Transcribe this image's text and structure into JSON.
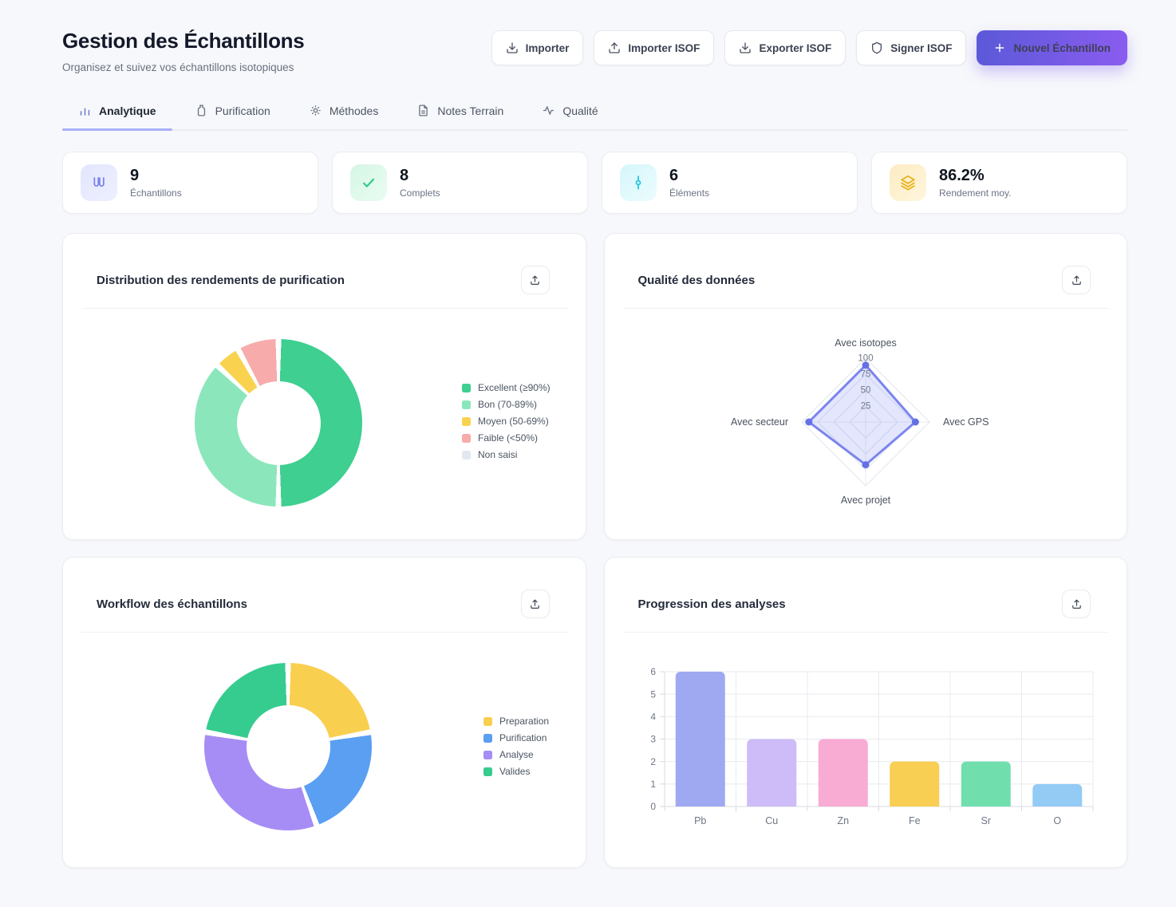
{
  "header": {
    "title": "Gestion des Échantillons",
    "subtitle": "Organisez et suivez vos échantillons isotopiques",
    "actions": [
      {
        "label": "Importer",
        "icon": "download-icon"
      },
      {
        "label": "Importer ISOF",
        "icon": "upload-icon"
      },
      {
        "label": "Exporter ISOF",
        "icon": "download-icon"
      },
      {
        "label": "Signer ISOF",
        "icon": "shield-icon"
      },
      {
        "label": "Nouvel Échantillon",
        "icon": "plus-icon",
        "primary": true,
        "accent": "#7a5cf0"
      }
    ]
  },
  "tabs": [
    {
      "label": "Analytique",
      "icon": "bar-chart-icon",
      "active": true
    },
    {
      "label": "Purification",
      "icon": "flask-icon",
      "active": false
    },
    {
      "label": "Méthodes",
      "icon": "sun-icon",
      "active": false
    },
    {
      "label": "Notes Terrain",
      "icon": "file-text-icon",
      "active": false
    },
    {
      "label": "Qualité",
      "icon": "activity-icon",
      "active": false
    }
  ],
  "stats": [
    {
      "value": "9",
      "label": "Échantillons",
      "icon": "test-tubes-icon",
      "accent": "#7b85ea"
    },
    {
      "value": "8",
      "label": "Complets",
      "icon": "check-icon",
      "accent": "#34c98a"
    },
    {
      "value": "6",
      "label": "Éléments",
      "icon": "commit-icon",
      "accent": "#29c8de"
    },
    {
      "value": "86.2%",
      "label": "Rendement moy.",
      "icon": "layers-icon",
      "accent": "#e8b421"
    }
  ],
  "chart_data": [
    {
      "id": "yield_distribution",
      "type": "pie",
      "donut": true,
      "title": "Distribution des rendements de purification",
      "labels": [
        "Excellent (≥90%)",
        "Bon (70-89%)",
        "Moyen (50-69%)",
        "Faible (<50%)",
        "Non saisi"
      ],
      "values": [
        50,
        37,
        5,
        8,
        0
      ],
      "unit": "percent",
      "colors": [
        "#3ecf91",
        "#8be7bb",
        "#f9d34f",
        "#f7abab",
        "#e2e8f0"
      ],
      "legend_position": "right"
    },
    {
      "id": "data_quality",
      "type": "radar",
      "title": "Qualité des données",
      "axes": [
        "Avec isotopes",
        "Avec GPS",
        "Avec projet",
        "Avec secteur"
      ],
      "values": [
        89,
        78,
        67,
        89
      ],
      "ticks": [
        25,
        50,
        75,
        100
      ],
      "max": 100,
      "line_color": "#7b85ee",
      "fill_color": "rgba(129,140,248,0.22)",
      "dot_color": "#6570e6",
      "grid": true
    },
    {
      "id": "workflow",
      "type": "pie",
      "donut": true,
      "title": "Workflow des échantillons",
      "labels": [
        "Preparation",
        "Purification",
        "Analyse",
        "Valides"
      ],
      "values": [
        2,
        2,
        3,
        2
      ],
      "unit": "samples",
      "colors": [
        "#f9cf4f",
        "#5a9ff2",
        "#a68df5",
        "#36cc8f"
      ],
      "legend_position": "right"
    },
    {
      "id": "analysis_progress",
      "type": "bar",
      "title": "Progression des analyses",
      "categories": [
        "Pb",
        "Cu",
        "Zn",
        "Fe",
        "Sr",
        "O"
      ],
      "values": [
        6,
        3,
        3,
        2,
        2,
        1
      ],
      "colors": [
        "#9fa9f1",
        "#cdbcf7",
        "#f8abd3",
        "#f8cf52",
        "#70dfad",
        "#93cbf5"
      ],
      "xlabel": "",
      "ylabel": "",
      "ylim": [
        0,
        6
      ],
      "yticks": [
        0,
        1,
        2,
        3,
        4,
        5,
        6
      ],
      "grid": true,
      "legend_position": "none"
    }
  ]
}
